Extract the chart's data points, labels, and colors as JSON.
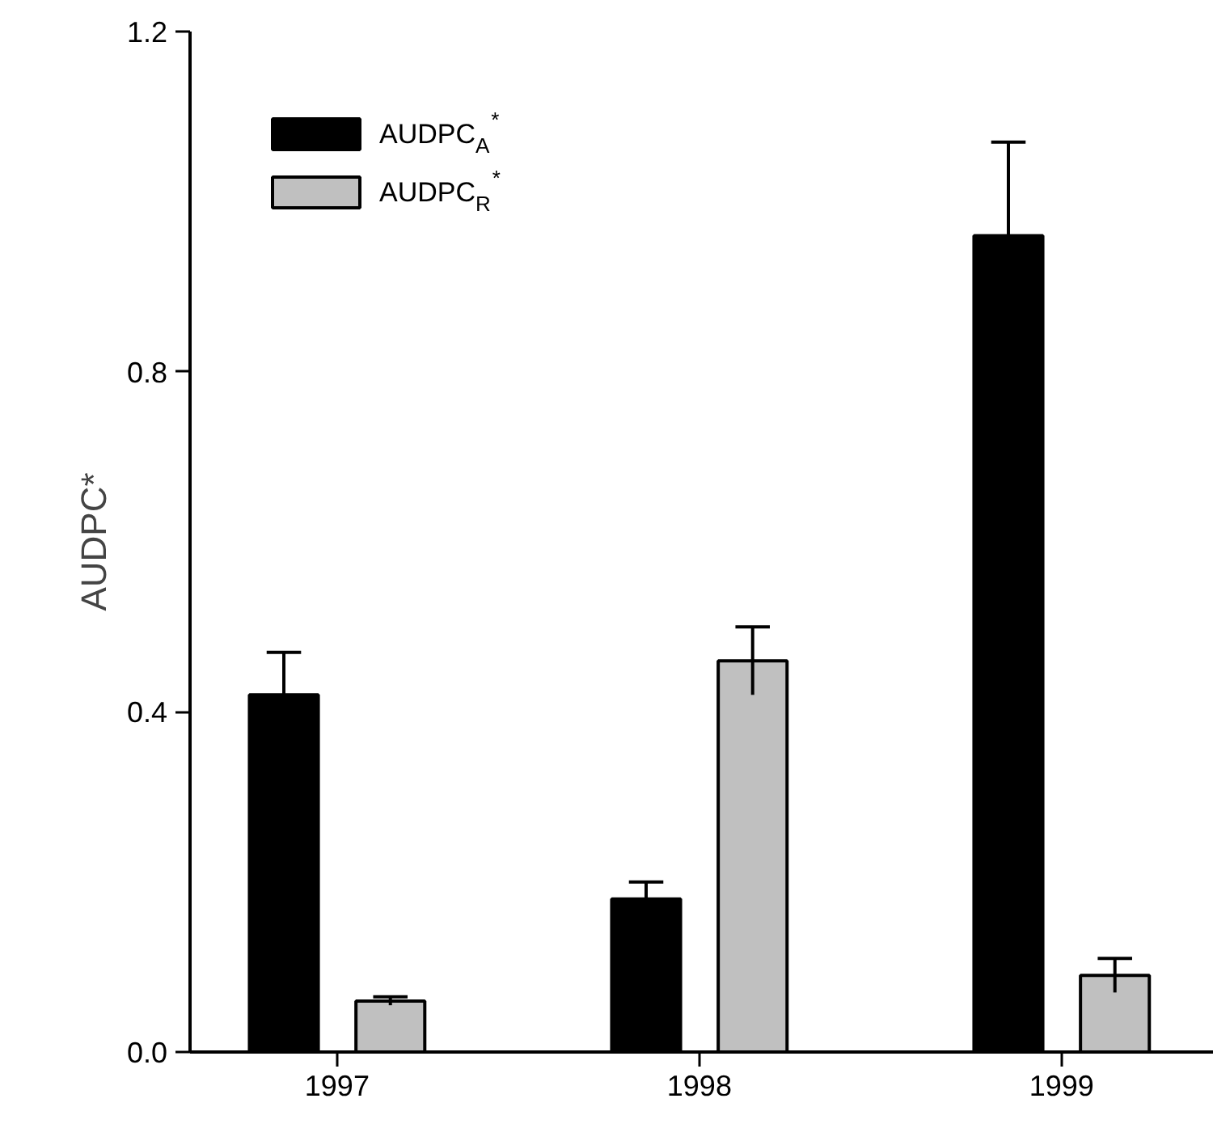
{
  "chart_data": {
    "type": "bar",
    "ylabel": "AUDPC*",
    "categories": [
      "1997",
      "1998",
      "1999"
    ],
    "series": [
      {
        "name": "AUDPC$_{A}$$^{*}$",
        "color": "#000000",
        "values": [
          0.42,
          0.18,
          0.96
        ],
        "errors": [
          0.05,
          0.02,
          0.11
        ]
      },
      {
        "name": "AUDPC$_{R}$$^{*}$",
        "color": "#c0c0c0",
        "values": [
          0.06,
          0.46,
          0.09
        ],
        "errors": [
          0.005,
          0.04,
          0.02
        ]
      }
    ],
    "ylim": [
      0,
      1.2
    ],
    "yticks": [
      {
        "value": 0,
        "label": "0.0"
      },
      {
        "value": 0.4,
        "label": "0.4"
      },
      {
        "value": 0.8,
        "label": "0.8"
      },
      {
        "value": 1.2,
        "label": "1.2"
      }
    ],
    "legend": "top left",
    "grid": false
  }
}
